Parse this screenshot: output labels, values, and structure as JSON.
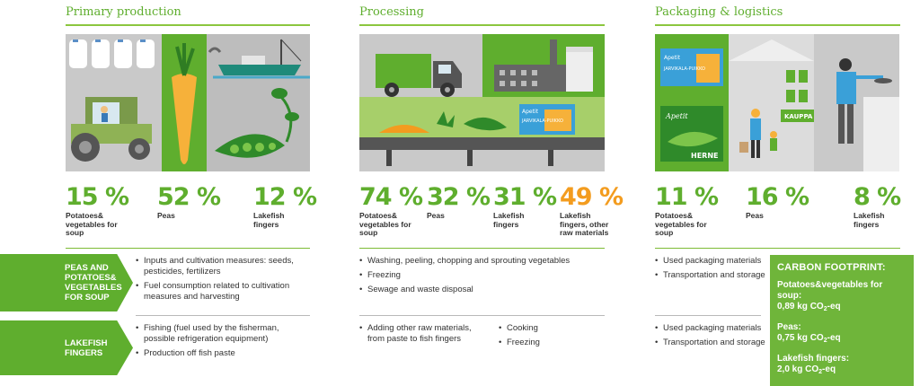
{
  "sections": [
    {
      "title": "Primary production",
      "stats": [
        {
          "value": "15 %",
          "label": "Potatoes& vegetables for soup"
        },
        {
          "value": "52 %",
          "label": "Peas"
        },
        {
          "value": "12 %",
          "label": "Lakefish fingers"
        }
      ]
    },
    {
      "title": "Processing",
      "stats": [
        {
          "value": "74 %",
          "label": "Potatoes& vegetables for soup"
        },
        {
          "value": "32 %",
          "label": "Peas"
        },
        {
          "value": "31 %",
          "label": "Lakefish fingers"
        },
        {
          "value": "49 %",
          "label": "Lakefish fingers, other raw materials"
        }
      ]
    },
    {
      "title": "Packaging & logistics",
      "stats": [
        {
          "value": "11 %",
          "label": "Potatoes& vegetables for soup"
        },
        {
          "value": "16 %",
          "label": "Peas"
        },
        {
          "value": "8 %",
          "label": "Lakefish fingers"
        }
      ]
    }
  ],
  "illustration_text": {
    "box_brand": "Apetit",
    "box_product": "JARVIKALA-PUIKKO",
    "peas_brand": "Apetit",
    "peas_product": "HERNE",
    "shop_sign": "KAUPPA"
  },
  "rows": [
    {
      "label": "PEAS AND POTATOES& VEGETABLES FOR SOUP",
      "primary": [
        "Inputs and cultivation measures: seeds, pesticides, fertilizers",
        "Fuel consumption related to cultivation measures and harvesting"
      ],
      "processing": [
        "Washing, peeling, chopping and sprouting vegetables",
        "Freezing",
        "Sewage and waste disposal"
      ],
      "logistics": [
        "Used packaging materials",
        "Transportation and storage"
      ]
    },
    {
      "label": "LAKEFISH FINGERS",
      "primary": [
        "Fishing (fuel used by the fisherman, possible refrigeration equipment)",
        "Production off fish paste"
      ],
      "processing": [
        "Adding other raw materials, from paste to fish fingers"
      ],
      "processing_b": [
        "Cooking",
        "Freezing"
      ],
      "logistics": [
        "Used packaging materials",
        "Transportation and storage"
      ]
    }
  ],
  "carbon": {
    "title": "CARBON FOOTPRINT:",
    "items": [
      {
        "label": "Potatoes&vegetables for soup:",
        "value": "0,89 kg CO",
        "sub": "2",
        "unit": "-eq"
      },
      {
        "label": "Peas:",
        "value": "0,75 kg CO",
        "sub": "2",
        "unit": "-eq"
      },
      {
        "label": "Lakefish fingers:",
        "value": "2,0 kg CO",
        "sub": "2",
        "unit": "-eq"
      }
    ]
  },
  "colors": {
    "green": "#5fae2e",
    "light_green": "#8cc63f",
    "orange": "#f39c1f",
    "grey": "#c9c9c9"
  }
}
